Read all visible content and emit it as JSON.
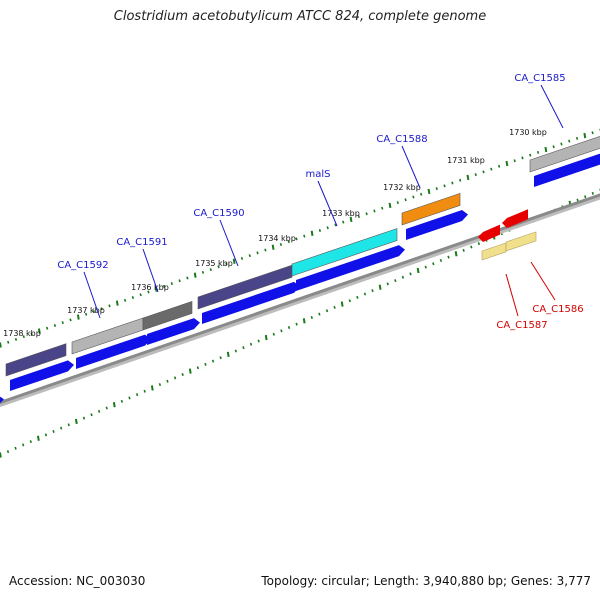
{
  "title": "Clostridium acetobutylicum ATCC 824, complete genome",
  "footer": {
    "accession": "Accession: NC_003030",
    "summary": "Topology: circular; Length: 3,940,880 bp; Genes: 3,777"
  },
  "colors": {
    "forward_label": "#1a1acc",
    "reverse_label": "#d60000",
    "cds_blue": "#1010e8",
    "tick_green": "#1a7a1a",
    "backbone": "#8a8a8a"
  },
  "kbp_labels": [
    "1738 kbp",
    "1737 kbp",
    "1736 kbp",
    "1735 kbp",
    "1734 kbp",
    "1733 kbp",
    "1732 kbp",
    "1731 kbp",
    "1730 kbp"
  ],
  "forward_genes": [
    {
      "label": "",
      "color": "#4a4488"
    },
    {
      "label": "CA_C1592",
      "color": "#b4b4b4"
    },
    {
      "label": "CA_C1591",
      "color": "#6a6a6a"
    },
    {
      "label": "CA_C1590",
      "color": "#4a4488"
    },
    {
      "label": "malS",
      "color": "#1ee6e6"
    },
    {
      "label": "CA_C1588",
      "color": "#f08c10"
    },
    {
      "label": "CA_C1585",
      "color": "#b4b4b4"
    }
  ],
  "reverse_genes": [
    {
      "label": "CA_C1587",
      "color": "#f0e08c",
      "cds_color": "#e60000"
    },
    {
      "label": "CA_C1586",
      "color": "#f0e08c",
      "cds_color": "#e60000"
    }
  ]
}
